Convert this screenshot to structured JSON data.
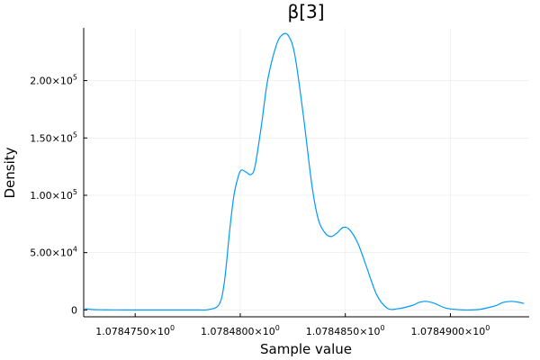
{
  "chart_data": {
    "type": "line",
    "title": "β[3]",
    "xlabel": "Sample value",
    "ylabel": "Density",
    "xlim": [
      1.07847255,
      1.07849375
    ],
    "ylim": [
      -6000,
      246000
    ],
    "grid": true,
    "legend": "none",
    "series_color": "#009af9",
    "x_ticks": [
      {
        "value": 1.078475,
        "mantissa": "1.0784750",
        "exp": "0"
      },
      {
        "value": 1.07848,
        "mantissa": "1.0784800",
        "exp": "0"
      },
      {
        "value": 1.078485,
        "mantissa": "1.0784850",
        "exp": "0"
      },
      {
        "value": 1.07849,
        "mantissa": "1.0784900",
        "exp": "0"
      }
    ],
    "y_ticks": [
      {
        "value": 0,
        "mantissa": "0",
        "exp": ""
      },
      {
        "value": 50000,
        "mantissa": "5.00",
        "exp": "4"
      },
      {
        "value": 100000,
        "mantissa": "1.00",
        "exp": "5"
      },
      {
        "value": 150000,
        "mantissa": "1.50",
        "exp": "5"
      },
      {
        "value": 200000,
        "mantissa": "2.00",
        "exp": "5"
      }
    ],
    "series": [
      {
        "name": "β[3]",
        "points": [
          [
            1.0784726,
            1000
          ],
          [
            1.078473,
            300
          ],
          [
            1.0784735,
            100
          ],
          [
            1.078474,
            50
          ],
          [
            1.0784745,
            0
          ],
          [
            1.078475,
            0
          ],
          [
            1.0784755,
            0
          ],
          [
            1.078476,
            0
          ],
          [
            1.0784765,
            0
          ],
          [
            1.078477,
            0
          ],
          [
            1.0784775,
            0
          ],
          [
            1.078478,
            0
          ],
          [
            1.0784785,
            300
          ],
          [
            1.078479,
            5000
          ],
          [
            1.07847925,
            25000
          ],
          [
            1.0784795,
            70000
          ],
          [
            1.0784797,
            100000
          ],
          [
            1.0784799,
            116000
          ],
          [
            1.07848,
            121000
          ],
          [
            1.0784801,
            122000
          ],
          [
            1.0784803,
            120000
          ],
          [
            1.0784805,
            118000
          ],
          [
            1.0784807,
            125000
          ],
          [
            1.078481,
            160000
          ],
          [
            1.0784813,
            200000
          ],
          [
            1.0784817,
            230000
          ],
          [
            1.078482,
            240000
          ],
          [
            1.0784823,
            239000
          ],
          [
            1.0784826,
            222000
          ],
          [
            1.078483,
            170000
          ],
          [
            1.0784834,
            110000
          ],
          [
            1.0784837,
            80000
          ],
          [
            1.078484,
            68000
          ],
          [
            1.0784843,
            64000
          ],
          [
            1.0784846,
            67000
          ],
          [
            1.0784849,
            72000
          ],
          [
            1.0784852,
            70000
          ],
          [
            1.0784856,
            58000
          ],
          [
            1.078486,
            38000
          ],
          [
            1.0784865,
            13000
          ],
          [
            1.078487,
            1500
          ],
          [
            1.0784875,
            1000
          ],
          [
            1.0784882,
            4000
          ],
          [
            1.0784885,
            6500
          ],
          [
            1.0784888,
            7500
          ],
          [
            1.0784892,
            6000
          ],
          [
            1.0784898,
            1500
          ],
          [
            1.0784905,
            100
          ],
          [
            1.078491,
            0
          ],
          [
            1.0784914,
            500
          ],
          [
            1.0784918,
            2000
          ],
          [
            1.0784922,
            4000
          ],
          [
            1.0784925,
            6500
          ],
          [
            1.0784929,
            7500
          ],
          [
            1.0784933,
            6500
          ],
          [
            1.0784935,
            5500
          ]
        ]
      }
    ]
  }
}
